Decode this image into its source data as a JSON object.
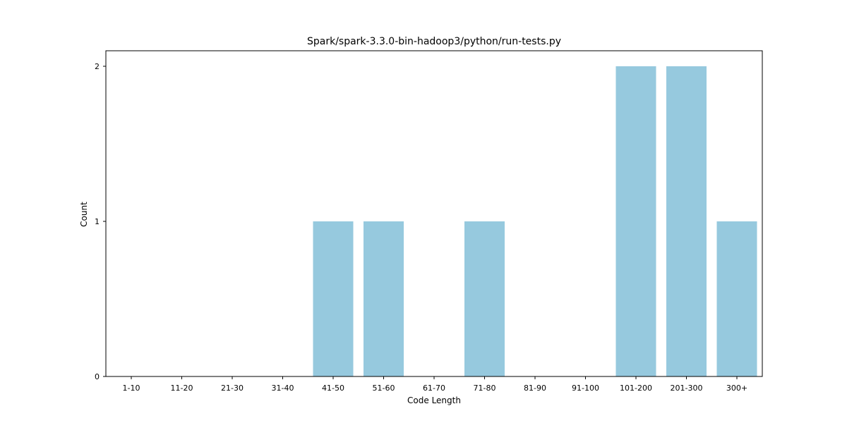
{
  "chart_data": {
    "type": "bar",
    "title": "Spark/spark-3.3.0-bin-hadoop3/python/run-tests.py",
    "xlabel": "Code Length",
    "ylabel": "Count",
    "categories": [
      "1-10",
      "11-20",
      "21-30",
      "31-40",
      "41-50",
      "51-60",
      "61-70",
      "71-80",
      "81-90",
      "91-100",
      "101-200",
      "201-300",
      "300+"
    ],
    "values": [
      0,
      0,
      0,
      0,
      1,
      1,
      0,
      1,
      0,
      0,
      2,
      2,
      1
    ],
    "yticks": [
      0,
      1,
      2
    ],
    "ylim": [
      0,
      2.1
    ],
    "bar_color": "#96c9de",
    "grid": false,
    "legend": "none"
  }
}
